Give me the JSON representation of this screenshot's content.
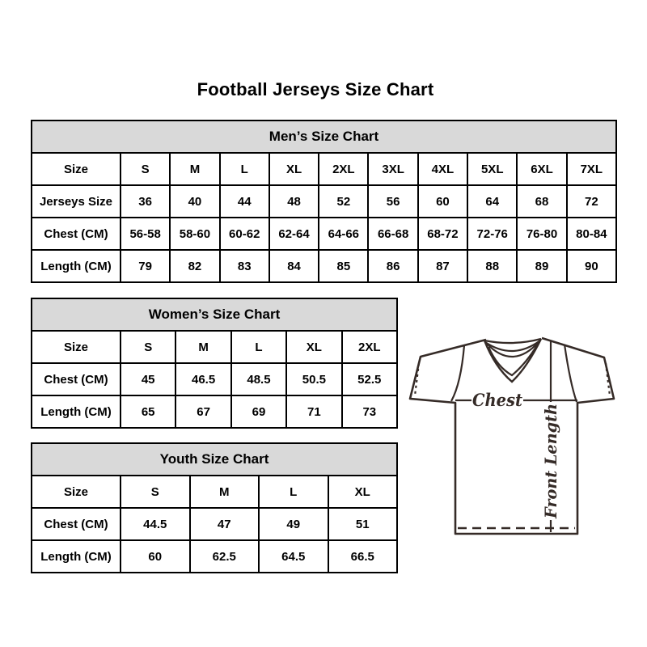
{
  "title": "Football Jerseys Size Chart",
  "tables": [
    {
      "name": "mens",
      "title": "Men’s Size Chart",
      "rows": [
        [
          "Size",
          "S",
          "M",
          "L",
          "XL",
          "2XL",
          "3XL",
          "4XL",
          "5XL",
          "6XL",
          "7XL"
        ],
        [
          "Jerseys Size",
          "36",
          "40",
          "44",
          "48",
          "52",
          "56",
          "60",
          "64",
          "68",
          "72"
        ],
        [
          "Chest (CM)",
          "56-58",
          "58-60",
          "60-62",
          "62-64",
          "64-66",
          "66-68",
          "68-72",
          "72-76",
          "76-80",
          "80-84"
        ],
        [
          "Length (CM)",
          "79",
          "82",
          "83",
          "84",
          "85",
          "86",
          "87",
          "88",
          "89",
          "90"
        ]
      ]
    },
    {
      "name": "womens",
      "title": "Women’s Size Chart",
      "rows": [
        [
          "Size",
          "S",
          "M",
          "L",
          "XL",
          "2XL"
        ],
        [
          "Chest (CM)",
          "45",
          "46.5",
          "48.5",
          "50.5",
          "52.5"
        ],
        [
          "Length (CM)",
          "65",
          "67",
          "69",
          "71",
          "73"
        ]
      ]
    },
    {
      "name": "youth",
      "title": "Youth Size Chart",
      "rows": [
        [
          "Size",
          "S",
          "M",
          "L",
          "XL"
        ],
        [
          "Chest (CM)",
          "44.5",
          "47",
          "49",
          "51"
        ],
        [
          "Length (CM)",
          "60",
          "62.5",
          "64.5",
          "66.5"
        ]
      ]
    }
  ],
  "diagram": {
    "chest_label": "Chest",
    "front_length_label": "Front Length"
  },
  "colors": {
    "table_header_bg": "#d9d9d9",
    "table_border": "#000000",
    "text": "#000000",
    "jersey_line": "#352b27"
  }
}
